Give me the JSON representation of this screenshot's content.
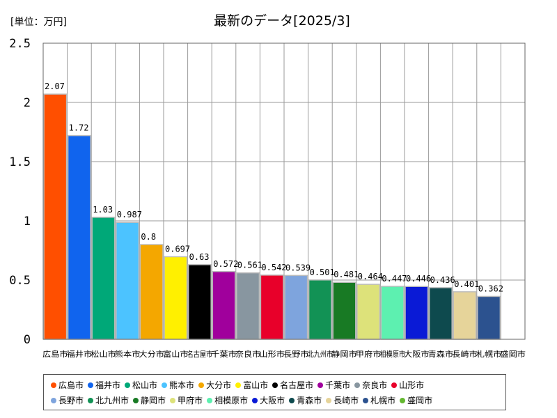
{
  "chart_data": {
    "type": "bar",
    "title": "最新のデータ[2025/3]",
    "unit_label": "[単位：万円]",
    "ylim": [
      0,
      2.5
    ],
    "yticks": [
      "0",
      "0.5",
      "1",
      "1.5",
      "2",
      "2.5"
    ],
    "ytick_values": [
      0,
      0.5,
      1,
      1.5,
      2,
      2.5
    ],
    "grid": true,
    "legend_position": "bottom",
    "categories": [
      "広島市",
      "福井市",
      "松山市",
      "熊本市",
      "大分市",
      "富山市",
      "名古屋市",
      "千葉市",
      "奈良市",
      "山形市",
      "長野市",
      "北九州市",
      "静岡市",
      "甲府市",
      "相模原市",
      "大阪市",
      "青森市",
      "長崎市",
      "札幌市",
      "盛岡市"
    ],
    "values": [
      2.07,
      1.72,
      1.03,
      0.987,
      0.8,
      0.697,
      0.63,
      0.572,
      0.561,
      0.542,
      0.539,
      0.501,
      0.481,
      0.464,
      0.447,
      0.446,
      0.436,
      0.401,
      0.362,
      0
    ],
    "value_labels": [
      "2.07",
      "1.72",
      "1.03",
      "0.987",
      "0.8",
      "0.697",
      "0.63",
      "0.572",
      "0.561",
      "0.542",
      "0.539",
      "0.501",
      "0.481",
      "0.464",
      "0.447",
      "0.446",
      "0.436",
      "0.401",
      "0.362",
      ""
    ],
    "colors": [
      "#ff4f00",
      "#1064ee",
      "#00a878",
      "#4cc3ff",
      "#f4a700",
      "#fff000",
      "#000000",
      "#a0009c",
      "#8896a0",
      "#e8002a",
      "#7ea4dd",
      "#129255",
      "#187a24",
      "#dde27a",
      "#5df0b0",
      "#0a1ad6",
      "#0e4a4e",
      "#e6d49a",
      "#2c528f",
      "#64b830"
    ]
  }
}
